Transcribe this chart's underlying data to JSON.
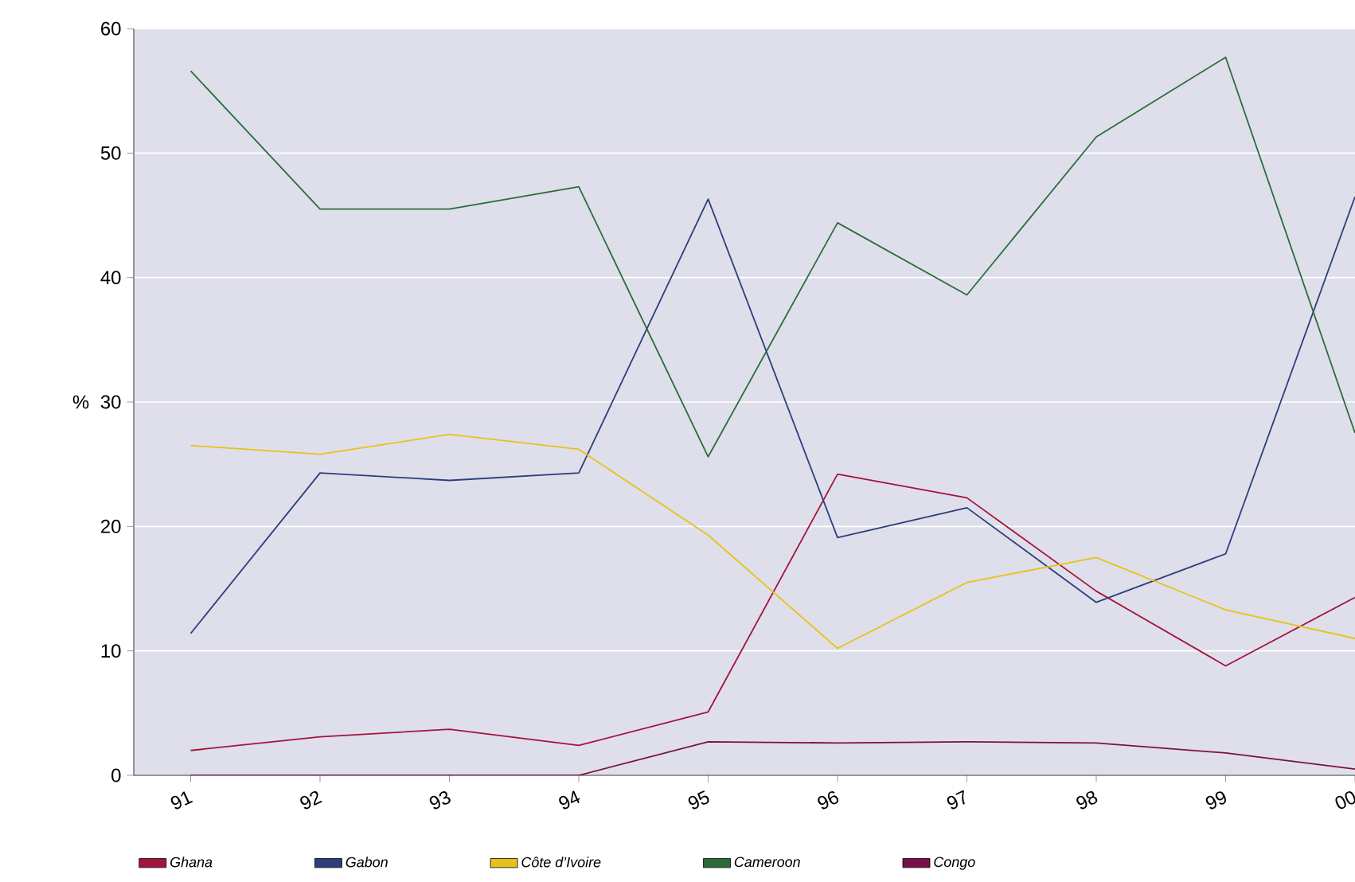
{
  "chart_data": {
    "type": "line",
    "ylabel": "%",
    "categories": [
      "91",
      "92",
      "93",
      "94",
      "95",
      "96",
      "97",
      "98",
      "99",
      "00"
    ],
    "ylim": [
      0,
      60
    ],
    "yticks": [
      0,
      10,
      20,
      30,
      40,
      50,
      60
    ],
    "grid": "y",
    "legend": "bottom",
    "series": [
      {
        "name": "Ghana",
        "color": "#a3133c",
        "values": [
          2.0,
          3.1,
          3.7,
          2.4,
          5.1,
          24.2,
          22.3,
          14.8,
          8.8,
          14.3
        ]
      },
      {
        "name": "Gabon",
        "color": "#2e3d7c",
        "values": [
          11.4,
          24.3,
          23.7,
          24.3,
          46.3,
          19.1,
          21.5,
          13.9,
          17.8,
          46.5
        ]
      },
      {
        "name": "Côte d’Ivoire",
        "color": "#e8c21a",
        "values": [
          26.5,
          25.8,
          27.4,
          26.2,
          19.3,
          10.2,
          15.5,
          17.5,
          13.3,
          11.0
        ]
      },
      {
        "name": "Cameroon",
        "color": "#2d6b3a",
        "values": [
          56.6,
          45.5,
          45.5,
          47.3,
          25.6,
          44.4,
          38.6,
          51.3,
          57.7,
          27.5
        ]
      },
      {
        "name": "Congo",
        "color": "#7a1048",
        "values": [
          0,
          0,
          0,
          0,
          2.7,
          2.6,
          2.7,
          2.6,
          1.8,
          0.5
        ]
      }
    ]
  }
}
